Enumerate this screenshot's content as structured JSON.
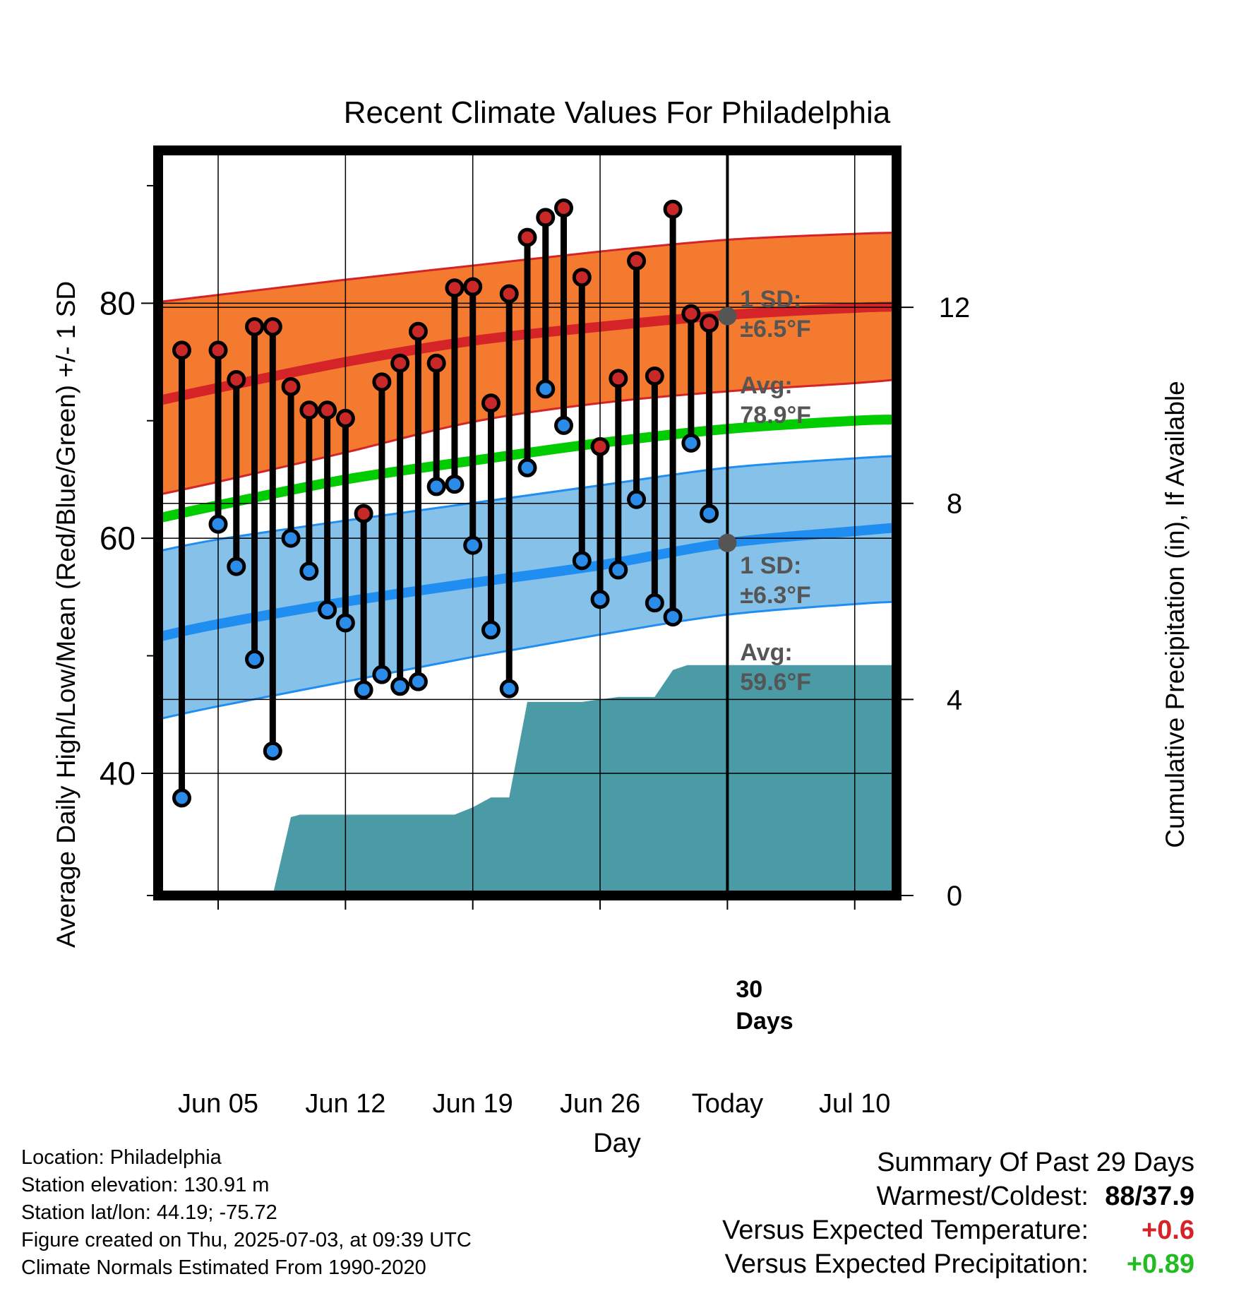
{
  "chart_data": {
    "type": "line",
    "title": "Recent Climate Values For Philadelphia",
    "xlabel": "Day",
    "ylabel_left": "Average Daily High/Low/Mean (Red/Blue/Green) +/- 1 SD",
    "ylabel_right": "Cumulative Precipitation (in), If Available",
    "x_ticks": [
      {
        "day": 5,
        "label": "Jun 05"
      },
      {
        "day": 12,
        "label": "Jun 12"
      },
      {
        "day": 19,
        "label": "Jun 19"
      },
      {
        "day": 26,
        "label": "Jun 26"
      },
      {
        "day": 33,
        "label": "Today"
      },
      {
        "day": 40,
        "label": "Jul 10"
      }
    ],
    "xlim": [
      1.7,
      42.3
    ],
    "ylim_left": [
      29.6,
      93
    ],
    "yticks_left": [
      40,
      60,
      80
    ],
    "ylim_right": [
      0,
      15.2
    ],
    "yticks_right": [
      0,
      4,
      8,
      12
    ],
    "today_day": 33,
    "normals": {
      "x": [
        1.7,
        5,
        12,
        19,
        26,
        33,
        40,
        42.3
      ],
      "high_mean": [
        71.7,
        72.8,
        75.0,
        76.8,
        78.0,
        79.0,
        79.6,
        79.7
      ],
      "high_sd_upper": [
        80.1,
        80.7,
        82.0,
        83.2,
        84.4,
        85.4,
        85.9,
        86.0
      ],
      "high_sd_lower": [
        63.7,
        64.8,
        67.3,
        69.9,
        71.5,
        72.5,
        73.2,
        73.5
      ],
      "mean": [
        61.7,
        62.8,
        65.0,
        66.6,
        68.1,
        69.3,
        70.0,
        70.1
      ],
      "low_mean": [
        51.6,
        52.7,
        54.6,
        56.2,
        57.7,
        59.6,
        60.6,
        60.9
      ],
      "low_sd_upper": [
        58.9,
        59.9,
        61.5,
        63.0,
        64.5,
        66.0,
        66.8,
        67.0
      ],
      "low_sd_lower": [
        44.6,
        45.7,
        47.8,
        49.9,
        51.8,
        53.5,
        54.4,
        54.6
      ]
    },
    "daily": [
      {
        "day": 3,
        "high": 76,
        "low": 37.9
      },
      {
        "day": 5,
        "high": 76,
        "low": 61.2
      },
      {
        "day": 6,
        "high": 73.5,
        "low": 57.6
      },
      {
        "day": 7,
        "high": 78,
        "low": 49.7
      },
      {
        "day": 8,
        "high": 78,
        "low": 41.9
      },
      {
        "day": 9,
        "high": 72.9,
        "low": 60.0
      },
      {
        "day": 10,
        "high": 70.9,
        "low": 57.2
      },
      {
        "day": 11,
        "high": 70.9,
        "low": 53.9
      },
      {
        "day": 12,
        "high": 70.2,
        "low": 52.8
      },
      {
        "day": 13,
        "high": 62.1,
        "low": 47.1
      },
      {
        "day": 14,
        "high": 73.3,
        "low": 48.4
      },
      {
        "day": 15,
        "high": 74.9,
        "low": 47.4
      },
      {
        "day": 16,
        "high": 77.6,
        "low": 47.8
      },
      {
        "day": 17,
        "high": 74.9,
        "low": 64.4
      },
      {
        "day": 18,
        "high": 81.3,
        "low": 64.6
      },
      {
        "day": 19,
        "high": 81.4,
        "low": 59.4
      },
      {
        "day": 20,
        "high": 71.5,
        "low": 52.2
      },
      {
        "day": 21,
        "high": 80.8,
        "low": 47.2
      },
      {
        "day": 22,
        "high": 85.6,
        "low": 66.0
      },
      {
        "day": 23,
        "high": 87.3,
        "low": 72.7
      },
      {
        "day": 24,
        "high": 88.1,
        "low": 69.6
      },
      {
        "day": 25,
        "high": 82.2,
        "low": 58.1
      },
      {
        "day": 26,
        "high": 67.8,
        "low": 54.8
      },
      {
        "day": 27,
        "high": 73.6,
        "low": 57.3
      },
      {
        "day": 28,
        "high": 83.6,
        "low": 63.3
      },
      {
        "day": 29,
        "high": 73.8,
        "low": 54.5
      },
      {
        "day": 30,
        "high": 88.0,
        "low": 53.3
      },
      {
        "day": 31,
        "high": 79.1,
        "low": 68.1
      },
      {
        "day": 32,
        "high": 78.3,
        "low": 62.1
      }
    ],
    "precip_cumulative": {
      "x": [
        1.7,
        8,
        9,
        9.5,
        18,
        19,
        20,
        21,
        22,
        25,
        27,
        28,
        29,
        30,
        30.8,
        33,
        42.3
      ],
      "values": [
        0,
        0,
        1.6,
        1.65,
        1.65,
        1.8,
        2.0,
        2.0,
        3.95,
        3.95,
        4.05,
        4.05,
        4.05,
        4.6,
        4.7,
        4.7,
        4.7
      ]
    },
    "annotations": {
      "high_sd": {
        "line1": "1 SD:",
        "line2": "±6.5°F"
      },
      "high_avg": {
        "line1": "Avg:",
        "line2": "78.9°F",
        "value": 78.9
      },
      "low_sd": {
        "line1": "1 SD:",
        "line2": "±6.3°F"
      },
      "low_avg": {
        "line1": "Avg:",
        "line2": "59.6°F",
        "value": 59.6
      },
      "days": {
        "line1": "30",
        "line2": "Days"
      }
    },
    "colors": {
      "high_band": "#f47a2f",
      "high_edge": "#d42428",
      "low_band": "#85c1e9",
      "low_edge": "#1f8ef0",
      "mean": "#00cc00",
      "precip": "#4a9ba6",
      "high_dot": "#c82828",
      "low_dot": "#2a8be8",
      "annotation": "#555555"
    }
  },
  "footer": {
    "location": "Location: Philadelphia",
    "elevation": "Station elevation: 130.91 m",
    "latlon": "Station lat/lon: 44.19; -75.72",
    "created": "Figure created on Thu, 2025-07-03, at 09:39 UTC",
    "normals": "Climate Normals Estimated From 1990-2020"
  },
  "summary": {
    "title": "Summary Of Past 29 Days",
    "warmest_label": "Warmest/Coldest:",
    "warmest_value": "88",
    "coldest_value": "37.9",
    "temp_label": "Versus Expected Temperature:",
    "temp_value": "+0.6",
    "precip_label": "Versus Expected Precipitation:",
    "precip_value": "+0.89",
    "temp_color": "#d42428",
    "precip_color": "#22bb22"
  }
}
